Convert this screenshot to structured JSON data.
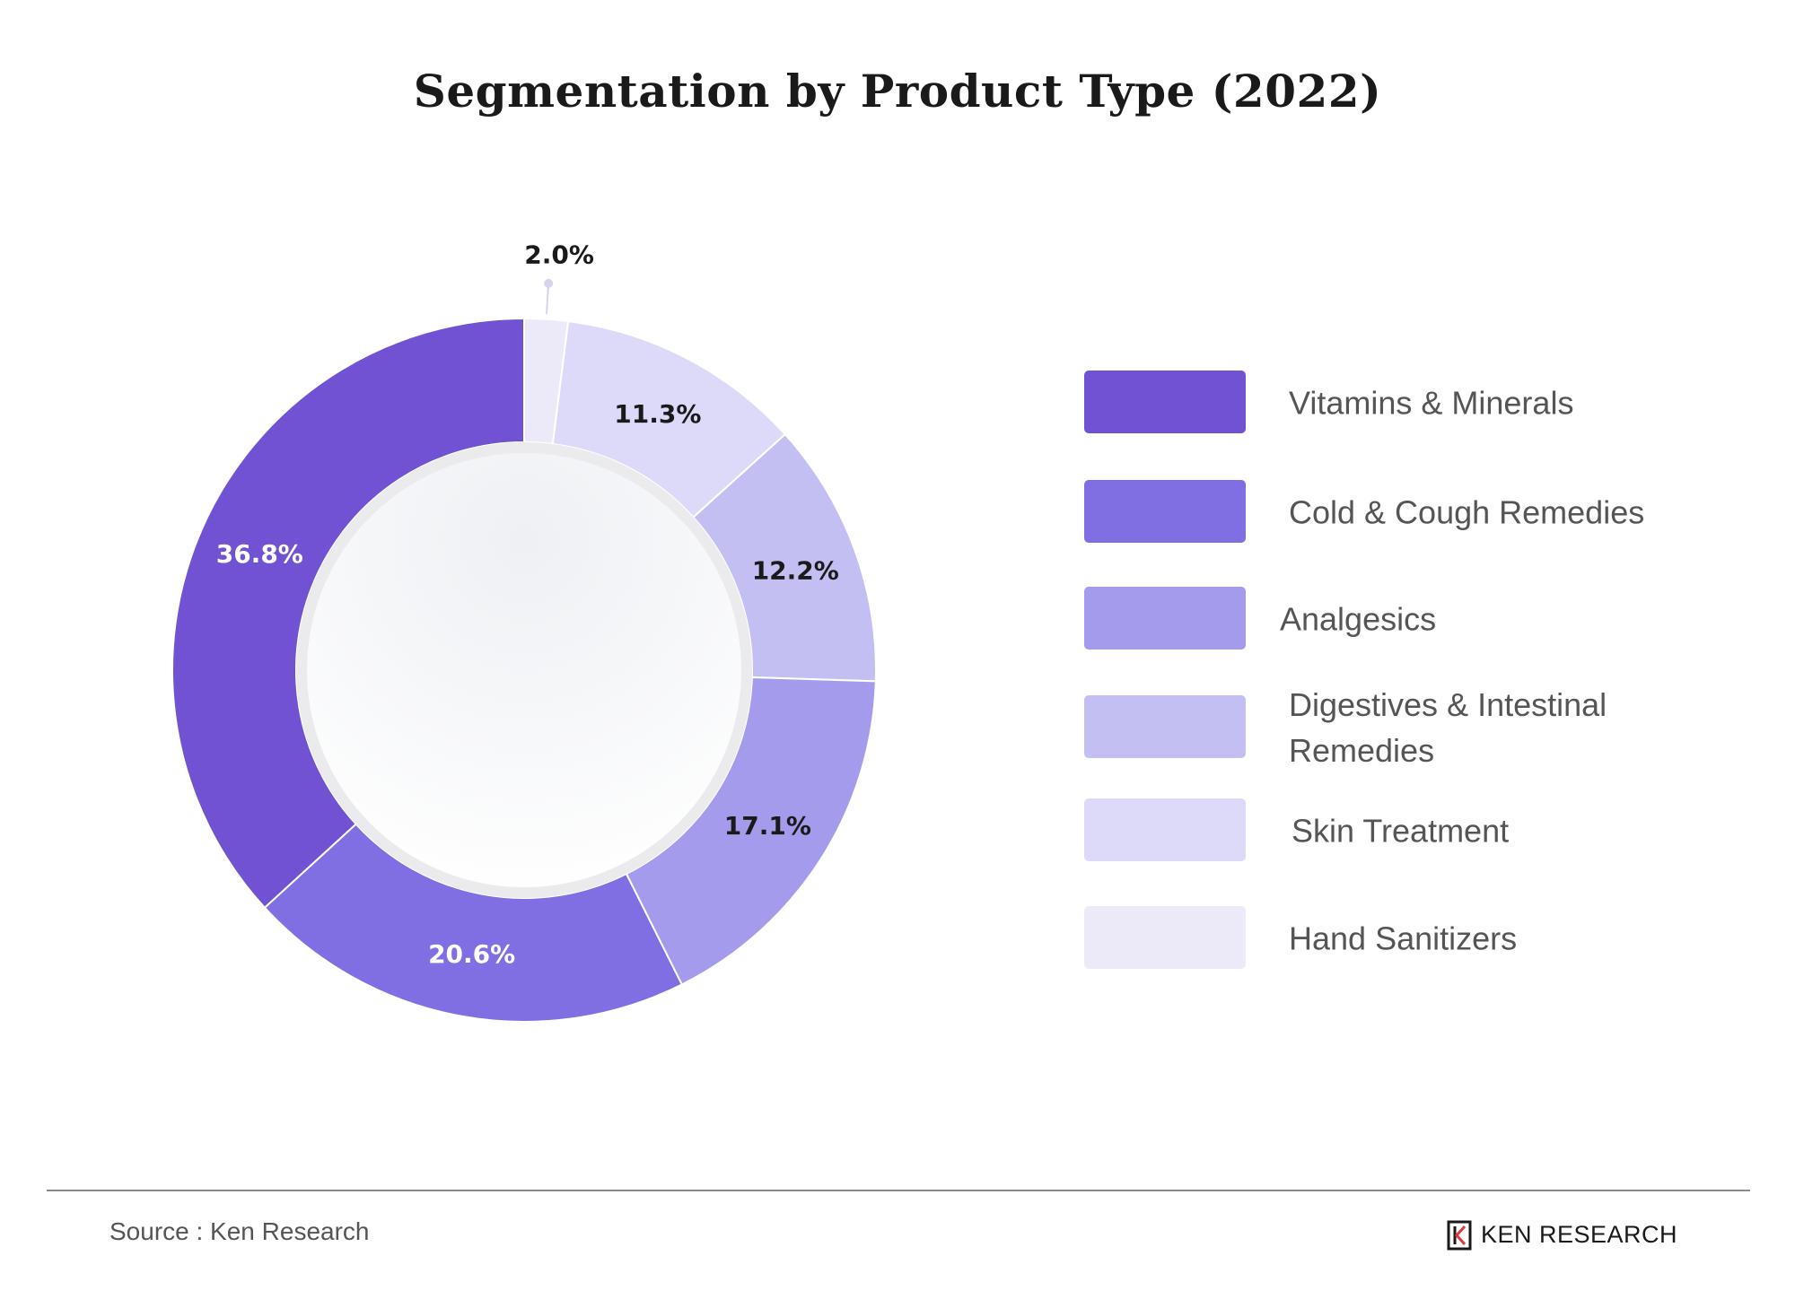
{
  "title": "Segmentation by Product Type (2022)",
  "chart_data": {
    "type": "pie",
    "subtype": "donut",
    "title": "Segmentation by Product Type (2022)",
    "categories": [
      "Vitamins & Minerals",
      "Cold & Cough Remedies",
      "Analgesics",
      "Digestives & Intestinal Remedies",
      "Skin Treatment",
      "Hand Sanitizers"
    ],
    "values": [
      36.8,
      20.6,
      17.1,
      12.2,
      11.3,
      2.0
    ],
    "value_labels": [
      "36.8%",
      "20.6%",
      "17.1%",
      "12.2%",
      "11.3%",
      "2.0%"
    ],
    "colors": [
      "#7152d3",
      "#806ee3",
      "#a59bec",
      "#c4bff2",
      "#dcdaf8",
      "#eceaf9"
    ],
    "slice_order_clockwise_from_top": [
      "Hand Sanitizers",
      "Skin Treatment",
      "Digestives & Intestinal Remedies",
      "Analgesics",
      "Cold & Cough Remedies",
      "Vitamins & Minerals"
    ],
    "legend_position": "right"
  },
  "legend": [
    {
      "label": "Vitamins & Minerals",
      "color": "#7152d3"
    },
    {
      "label": "Cold & Cough Remedies",
      "color": "#806ee3"
    },
    {
      "label": "Analgesics",
      "color": "#a59bec"
    },
    {
      "label": "Digestives & Intestinal Remedies",
      "color": "#c4bff2"
    },
    {
      "label": "Skin Treatment",
      "color": "#dcdaf8"
    },
    {
      "label": "Hand Sanitizers",
      "color": "#eceaf9"
    }
  ],
  "footer": {
    "source": "Source : Ken Research",
    "logo_text": "KEN RESEARCH"
  }
}
